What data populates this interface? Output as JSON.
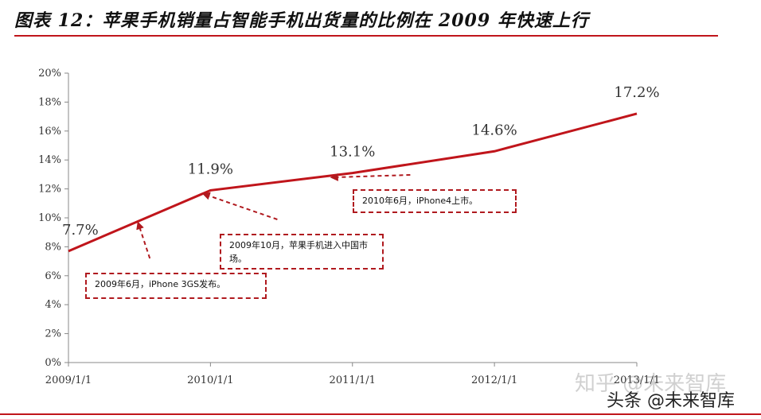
{
  "title": "图表 12：苹果手机销量占智能手机出货量的比例在 2009 年快速上行",
  "chart_data": {
    "type": "line",
    "x_ticks": [
      "2009/1/1",
      "2010/1/1",
      "2011/1/1",
      "2012/1/1",
      "2013/1/1"
    ],
    "y_ticks": [
      "0%",
      "2%",
      "4%",
      "6%",
      "8%",
      "10%",
      "12%",
      "14%",
      "16%",
      "18%",
      "20%"
    ],
    "ylim": [
      0,
      20
    ],
    "series": [
      {
        "color": "#c0151b",
        "points": [
          {
            "x": "2009/1/1",
            "y": 7.7
          },
          {
            "x": "2010/1/1",
            "y": 11.9
          },
          {
            "x": "2011/1/1",
            "y": 13.1
          },
          {
            "x": "2012/1/1",
            "y": 14.6
          },
          {
            "x": "2013/1/1",
            "y": 17.2
          }
        ]
      }
    ],
    "data_labels": [
      "7.7%",
      "11.9%",
      "13.1%",
      "14.6%",
      "17.2%"
    ],
    "annotations": [
      {
        "text": "2009年6月，iPhone 3GS发布。",
        "x": "2009/7/1",
        "y": 9.5
      },
      {
        "text": "2009年10月，苹果手机进入中国市场。",
        "x": "2009/12/20",
        "y": 11.6
      },
      {
        "text": "2010年6月，iPhone4上市。",
        "x": "2010/11/15",
        "y": 12.8
      }
    ],
    "grid": false
  },
  "watermark": {
    "faint": "知乎 @未来智库",
    "main": "头条 @未来智库"
  }
}
